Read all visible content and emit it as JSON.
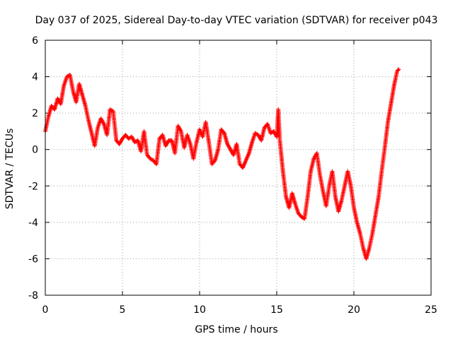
{
  "chart_data": {
    "type": "scatter",
    "title": "Day 037 of 2025, Sidereal Day-to-day VTEC variation (SDTVAR) for receiver p043",
    "xlabel": "GPS time / hours",
    "ylabel": "SDTVAR / TECUs",
    "xlim": [
      0,
      25
    ],
    "ylim": [
      -8,
      6
    ],
    "xticks": [
      0,
      5,
      10,
      15,
      20,
      25
    ],
    "yticks": [
      -8,
      -6,
      -4,
      -2,
      0,
      2,
      4,
      6
    ],
    "grid": true,
    "marker": "+",
    "color": "#ff0000",
    "series": [
      {
        "name": "p043",
        "trace": [
          [
            0.0,
            1.0
          ],
          [
            0.2,
            1.8
          ],
          [
            0.4,
            2.4
          ],
          [
            0.6,
            2.2
          ],
          [
            0.8,
            2.8
          ],
          [
            1.0,
            2.5
          ],
          [
            1.2,
            3.5
          ],
          [
            1.4,
            4.0
          ],
          [
            1.6,
            4.1
          ],
          [
            1.8,
            3.2
          ],
          [
            2.0,
            2.6
          ],
          [
            2.2,
            3.6
          ],
          [
            2.4,
            3.0
          ],
          [
            2.6,
            2.4
          ],
          [
            2.8,
            1.6
          ],
          [
            3.0,
            0.9
          ],
          [
            3.2,
            0.2
          ],
          [
            3.4,
            1.2
          ],
          [
            3.6,
            1.7
          ],
          [
            3.8,
            1.4
          ],
          [
            4.0,
            0.8
          ],
          [
            4.2,
            2.2
          ],
          [
            4.4,
            2.1
          ],
          [
            4.6,
            0.5
          ],
          [
            4.8,
            0.3
          ],
          [
            5.0,
            0.6
          ],
          [
            5.2,
            0.8
          ],
          [
            5.4,
            0.6
          ],
          [
            5.6,
            0.7
          ],
          [
            5.8,
            0.4
          ],
          [
            6.0,
            0.5
          ],
          [
            6.2,
            -0.1
          ],
          [
            6.4,
            1.0
          ],
          [
            6.6,
            -0.3
          ],
          [
            6.8,
            -0.5
          ],
          [
            7.0,
            -0.6
          ],
          [
            7.2,
            -0.8
          ],
          [
            7.4,
            0.6
          ],
          [
            7.6,
            0.8
          ],
          [
            7.8,
            0.2
          ],
          [
            8.0,
            0.5
          ],
          [
            8.2,
            0.5
          ],
          [
            8.4,
            -0.2
          ],
          [
            8.6,
            1.3
          ],
          [
            8.8,
            1.0
          ],
          [
            9.0,
            0.1
          ],
          [
            9.2,
            0.8
          ],
          [
            9.4,
            0.3
          ],
          [
            9.6,
            -0.5
          ],
          [
            9.8,
            0.4
          ],
          [
            10.0,
            1.1
          ],
          [
            10.2,
            0.7
          ],
          [
            10.4,
            1.5
          ],
          [
            10.6,
            0.4
          ],
          [
            10.8,
            -0.8
          ],
          [
            11.0,
            -0.6
          ],
          [
            11.2,
            0.0
          ],
          [
            11.4,
            1.1
          ],
          [
            11.6,
            0.9
          ],
          [
            11.8,
            0.3
          ],
          [
            12.0,
            0.0
          ],
          [
            12.2,
            -0.3
          ],
          [
            12.4,
            0.3
          ],
          [
            12.6,
            -0.8
          ],
          [
            12.8,
            -1.0
          ],
          [
            13.0,
            -0.6
          ],
          [
            13.2,
            -0.2
          ],
          [
            13.4,
            0.4
          ],
          [
            13.6,
            0.9
          ],
          [
            13.8,
            0.8
          ],
          [
            14.0,
            0.5
          ],
          [
            14.2,
            1.2
          ],
          [
            14.4,
            1.4
          ],
          [
            14.6,
            0.9
          ],
          [
            14.8,
            1.0
          ],
          [
            15.0,
            0.7
          ],
          [
            15.1,
            2.2
          ],
          [
            15.2,
            0.5
          ],
          [
            15.4,
            -1.2
          ],
          [
            15.6,
            -2.6
          ],
          [
            15.8,
            -3.2
          ],
          [
            16.0,
            -2.4
          ],
          [
            16.2,
            -3.0
          ],
          [
            16.4,
            -3.5
          ],
          [
            16.6,
            -3.7
          ],
          [
            16.8,
            -3.8
          ],
          [
            17.0,
            -2.6
          ],
          [
            17.2,
            -1.2
          ],
          [
            17.4,
            -0.5
          ],
          [
            17.6,
            -0.2
          ],
          [
            17.8,
            -1.4
          ],
          [
            18.0,
            -2.3
          ],
          [
            18.2,
            -3.1
          ],
          [
            18.4,
            -2.0
          ],
          [
            18.6,
            -1.2
          ],
          [
            18.8,
            -2.6
          ],
          [
            19.0,
            -3.4
          ],
          [
            19.2,
            -2.8
          ],
          [
            19.4,
            -2.0
          ],
          [
            19.6,
            -1.2
          ],
          [
            19.8,
            -2.0
          ],
          [
            20.0,
            -3.2
          ],
          [
            20.2,
            -4.0
          ],
          [
            20.4,
            -4.6
          ],
          [
            20.6,
            -5.4
          ],
          [
            20.8,
            -6.0
          ],
          [
            21.0,
            -5.4
          ],
          [
            21.2,
            -4.6
          ],
          [
            21.4,
            -3.6
          ],
          [
            21.6,
            -2.6
          ],
          [
            21.8,
            -1.2
          ],
          [
            22.0,
            0.1
          ],
          [
            22.2,
            1.5
          ],
          [
            22.4,
            2.5
          ],
          [
            22.6,
            3.5
          ],
          [
            22.8,
            4.3
          ],
          [
            22.9,
            4.4
          ]
        ]
      }
    ]
  }
}
